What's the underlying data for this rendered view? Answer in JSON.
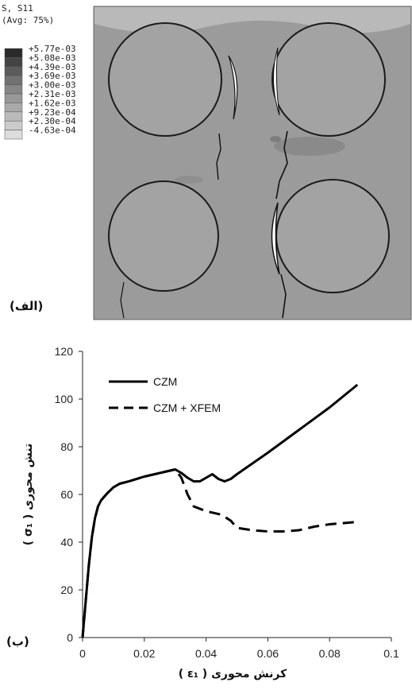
{
  "contour_legend": {
    "title_line1": "S, S11",
    "title_line2": "(Avg: 75%)",
    "levels": [
      "+5.77e-03",
      "+5.08e-03",
      "+4.39e-03",
      "+3.69e-03",
      "+3.00e-03",
      "+2.31e-03",
      "+1.62e-03",
      "+9.23e-04",
      "+2.30e-04",
      "-4.63e-04"
    ],
    "band_colors": [
      "#2a2a2a",
      "#444444",
      "#5c5c5c",
      "#727272",
      "#868686",
      "#989898",
      "#a9a9a9",
      "#bababa",
      "#cbcbcb",
      "#dcdcdc"
    ]
  },
  "panel_a_label": "(الف)",
  "panel_b_label": "(ب)",
  "colors": {
    "matrix": "#9b9b9b",
    "fiber": "#a3a3a3",
    "curve": "#000000"
  },
  "chart_data": {
    "type": "line",
    "xlabel": "کرنش محوری ( ε₁ )",
    "ylabel": "تنش محوری ( σ₁ )",
    "xlim": [
      0,
      0.1
    ],
    "ylim": [
      0,
      120
    ],
    "xticks": [
      "0",
      "0.02",
      "0.04",
      "0.06",
      "0.08",
      "0.1"
    ],
    "yticks": [
      "0",
      "20",
      "40",
      "60",
      "80",
      "100",
      "120"
    ],
    "grid": false,
    "legend_position": "top-left",
    "series": [
      {
        "name": "CZM",
        "style": "solid",
        "x": [
          0,
          0.001,
          0.002,
          0.003,
          0.004,
          0.005,
          0.006,
          0.008,
          0.01,
          0.012,
          0.015,
          0.02,
          0.025,
          0.03,
          0.032,
          0.034,
          0.036,
          0.038,
          0.04,
          0.042,
          0.044,
          0.046,
          0.048,
          0.05,
          0.06,
          0.07,
          0.08,
          0.089
        ],
        "y": [
          0,
          15,
          30,
          42,
          50,
          55,
          57.5,
          60.5,
          63,
          64.5,
          65.5,
          67.5,
          69,
          70.5,
          69,
          67,
          65.5,
          65.5,
          67,
          68.5,
          66.5,
          65.5,
          66.5,
          68.5,
          77.5,
          87,
          96.5,
          106
        ]
      },
      {
        "name": "CZM + XFEM",
        "style": "dashed",
        "x": [
          0,
          0.001,
          0.002,
          0.003,
          0.004,
          0.005,
          0.006,
          0.008,
          0.01,
          0.012,
          0.015,
          0.02,
          0.025,
          0.03,
          0.032,
          0.034,
          0.036,
          0.04,
          0.045,
          0.048,
          0.05,
          0.055,
          0.06,
          0.065,
          0.07,
          0.075,
          0.08,
          0.089
        ],
        "y": [
          0,
          15,
          30,
          42,
          50,
          55,
          57.5,
          60.5,
          63,
          64.5,
          65.5,
          67.5,
          69,
          70.5,
          67,
          60,
          55,
          53,
          51.5,
          49,
          46,
          45,
          44.5,
          44.5,
          45,
          46.5,
          47.5,
          48.5
        ]
      }
    ]
  }
}
